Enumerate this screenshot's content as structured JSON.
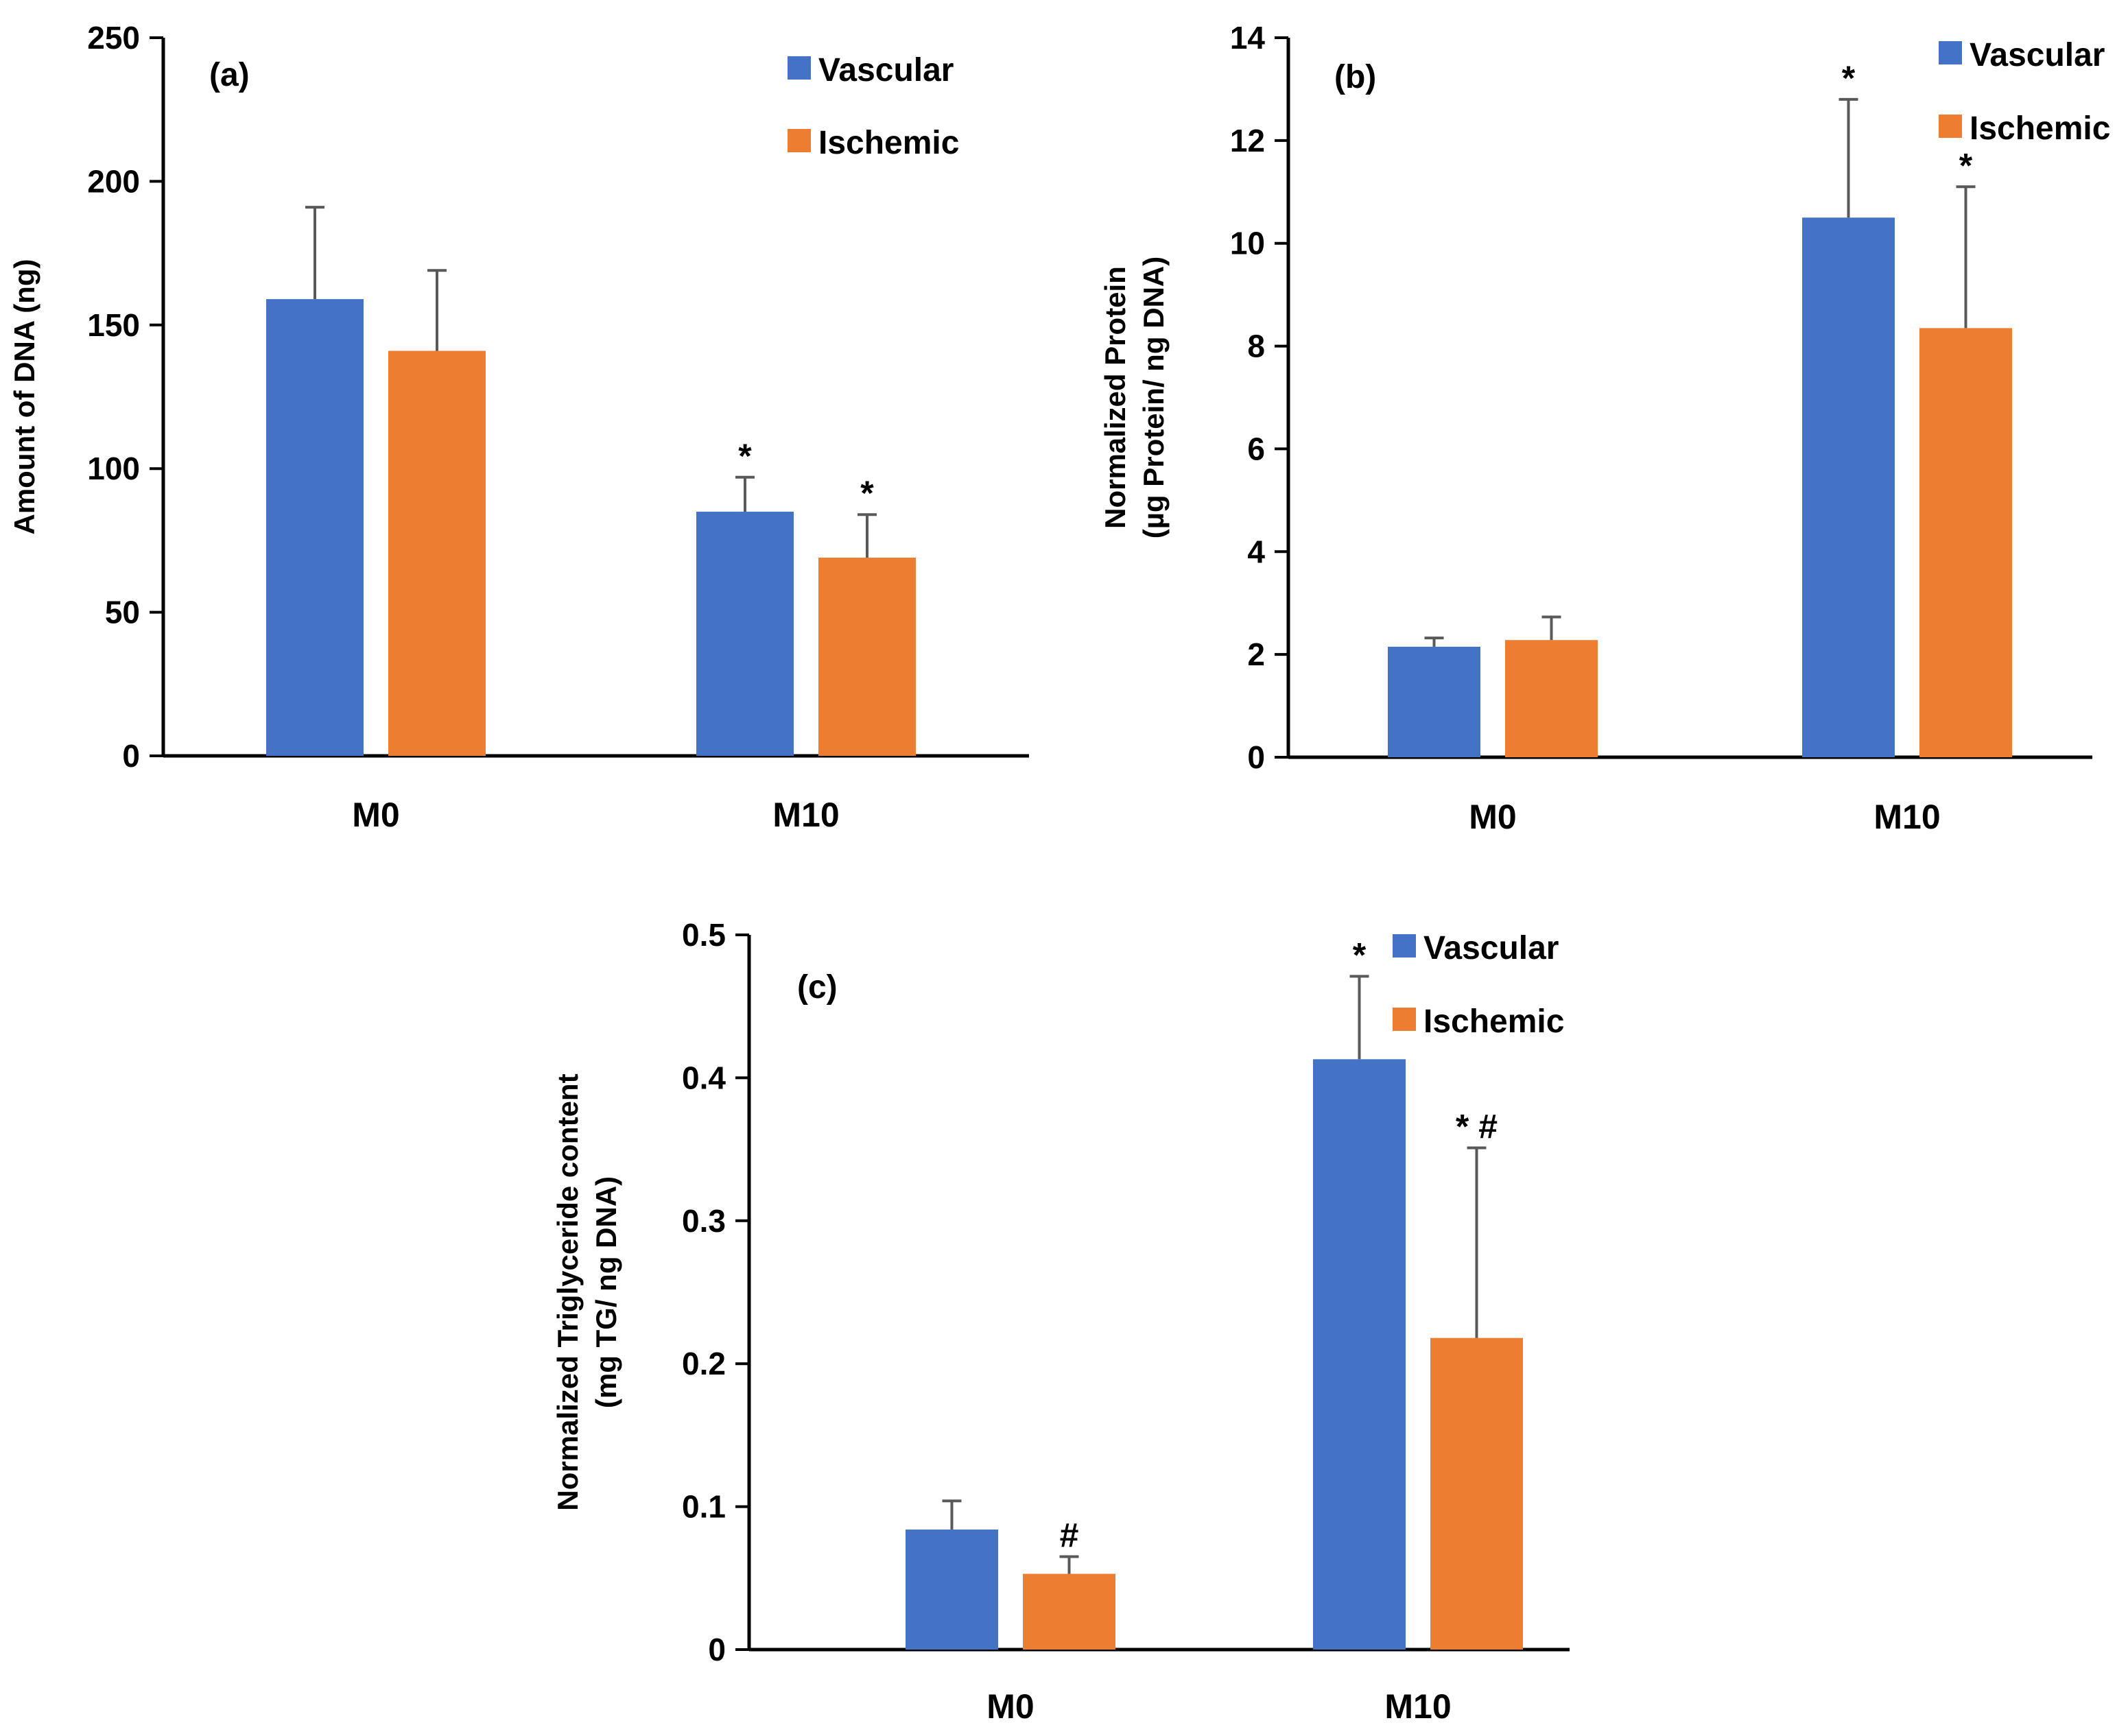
{
  "colors": {
    "vascular": "#4472C4",
    "ischemic": "#ED7D31",
    "axis": "#000000",
    "error": "#595959"
  },
  "chart_data": [
    {
      "type": "bar",
      "panel_label": "(a)",
      "ylabel_lines": [
        "Amount of DNA (ng)"
      ],
      "ylim": [
        0,
        250
      ],
      "yticks": [
        0,
        50,
        100,
        150,
        200,
        250
      ],
      "ytick_labels": [
        "0",
        "50",
        "100",
        "150",
        "200",
        "250"
      ],
      "categories": [
        "M0",
        "M10"
      ],
      "series": [
        {
          "name": "Vascular",
          "values": [
            159,
            85
          ],
          "errors": [
            32,
            12
          ],
          "annotations": [
            "",
            "*"
          ]
        },
        {
          "name": "Ischemic",
          "values": [
            141,
            69
          ],
          "errors": [
            28,
            15
          ],
          "annotations": [
            "",
            "*"
          ]
        }
      ],
      "legend": [
        "Vascular",
        "Ischemic"
      ]
    },
    {
      "type": "bar",
      "panel_label": "(b)",
      "ylabel_lines": [
        "Normalized Protein",
        "(µg Protein/ ng DNA)"
      ],
      "ylim": [
        0,
        14
      ],
      "yticks": [
        0,
        2,
        4,
        6,
        8,
        10,
        12,
        14
      ],
      "ytick_labels": [
        "0",
        "2",
        "4",
        "6",
        "8",
        "10",
        "12",
        "14"
      ],
      "categories": [
        "M0",
        "M10"
      ],
      "series": [
        {
          "name": "Vascular",
          "values": [
            2.15,
            10.5
          ],
          "errors": [
            0.17,
            2.3
          ],
          "annotations": [
            "",
            "*"
          ]
        },
        {
          "name": "Ischemic",
          "values": [
            2.28,
            8.35
          ],
          "errors": [
            0.45,
            2.75
          ],
          "annotations": [
            "",
            "*"
          ]
        }
      ],
      "legend": [
        "Vascular",
        "Ischemic"
      ]
    },
    {
      "type": "bar",
      "panel_label": "(c)",
      "ylabel_lines": [
        "Normalized Triglyceride content",
        "(mg TG/ ng DNA)"
      ],
      "ylim": [
        0,
        0.5
      ],
      "yticks": [
        0,
        0.1,
        0.2,
        0.3,
        0.4,
        0.5
      ],
      "ytick_labels": [
        "0",
        "0.1",
        "0.2",
        "0.3",
        "0.4",
        "0.5"
      ],
      "categories": [
        "M0",
        "M10"
      ],
      "series": [
        {
          "name": "Vascular",
          "values": [
            0.084,
            0.413
          ],
          "errors": [
            0.02,
            0.058
          ],
          "annotations": [
            "",
            "*"
          ]
        },
        {
          "name": "Ischemic",
          "values": [
            0.053,
            0.218
          ],
          "errors": [
            0.012,
            0.133
          ],
          "annotations": [
            "#",
            "* #"
          ]
        }
      ],
      "legend": [
        "Vascular",
        "Ischemic"
      ]
    }
  ]
}
